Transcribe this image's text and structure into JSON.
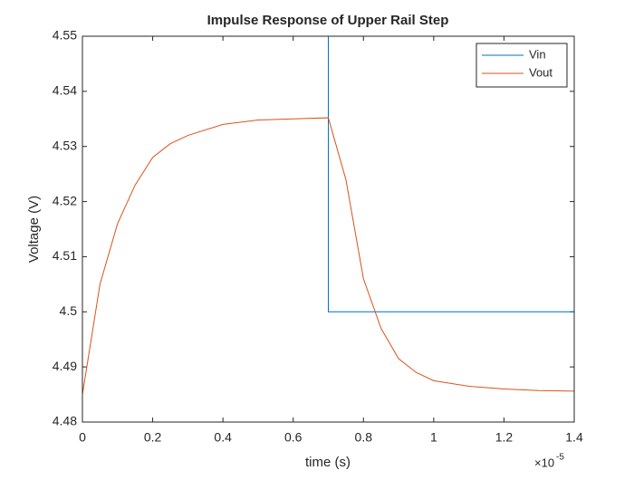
{
  "chart_data": {
    "type": "line",
    "title": "Impulse Response of Upper Rail Step",
    "x_label": "time (s)",
    "y_label": "Voltage (V)",
    "x_multiplier": {
      "base": "×10",
      "exponent": "-5"
    },
    "xlim": [
      0,
      1.4e-05
    ],
    "xticks": [
      0,
      {
        "value": 2e-06,
        "label": "0.2"
      },
      {
        "value": 4e-06,
        "label": "0.4"
      },
      {
        "value": 6e-06,
        "label": "0.6"
      },
      {
        "value": 8e-06,
        "label": "0.8"
      },
      {
        "value": 1e-05,
        "label": "1"
      },
      {
        "value": 1.2e-05,
        "label": "1.2"
      },
      {
        "value": 1.4e-05,
        "label": "1.4"
      }
    ],
    "ylim": [
      4.48,
      4.55
    ],
    "yticks": [
      4.48,
      4.49,
      4.5,
      4.51,
      4.52,
      4.53,
      4.54,
      4.55
    ],
    "legend": "upper right",
    "series": [
      {
        "name": "Vin",
        "color": "#0072BD",
        "x": [
          0,
          7e-06,
          7e-06,
          1.4e-05
        ],
        "values": [
          4.55,
          4.55,
          4.5,
          4.5
        ]
      },
      {
        "name": "Vout",
        "color": "#D95319",
        "x": [
          0,
          5e-07,
          1e-06,
          1.5e-06,
          2e-06,
          2.5e-06,
          3e-06,
          4e-06,
          5e-06,
          6e-06,
          7e-06,
          7.5e-06,
          8e-06,
          8.5e-06,
          9e-06,
          9.5e-06,
          1e-05,
          1.1e-05,
          1.2e-05,
          1.3e-05,
          1.4e-05
        ],
        "values": [
          4.485,
          4.505,
          4.516,
          4.523,
          4.528,
          4.5305,
          4.532,
          4.534,
          4.5348,
          4.535,
          4.5352,
          4.524,
          4.506,
          4.497,
          4.4915,
          4.489,
          4.4875,
          4.4865,
          4.486,
          4.4857,
          4.4856
        ]
      }
    ]
  }
}
